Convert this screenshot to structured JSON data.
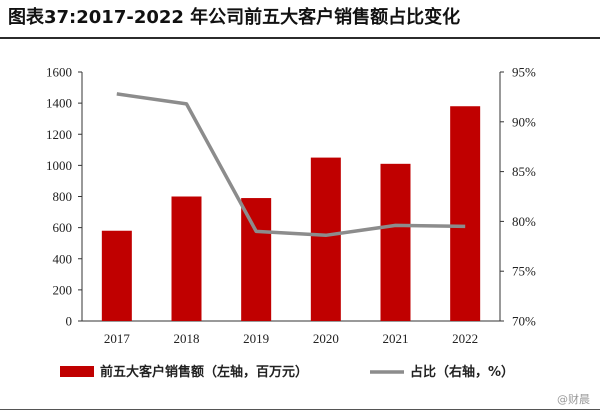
{
  "title": "图表37:2017-2022 年公司前五大客户销售额占比变化",
  "watermark": "@财晨",
  "colors": {
    "bar": "#c00000",
    "line": "#8c8c8c",
    "axis": "#333333"
  },
  "chart_data": {
    "type": "bar",
    "categories": [
      "2017",
      "2018",
      "2019",
      "2020",
      "2021",
      "2022"
    ],
    "series": [
      {
        "name": "前五大客户销售额（左轴，百万元）",
        "type": "bar",
        "axis": "left",
        "values": [
          580,
          800,
          790,
          1050,
          1010,
          1380
        ]
      },
      {
        "name": "占比（右轴，%）",
        "type": "line",
        "axis": "right",
        "values": [
          92.8,
          91.8,
          79.0,
          78.6,
          79.6,
          79.5
        ]
      }
    ],
    "left_axis": {
      "ylim": [
        0,
        1600
      ],
      "ticks": [
        "0",
        "200",
        "400",
        "600",
        "800",
        "1000",
        "1200",
        "1400",
        "1600"
      ]
    },
    "right_axis": {
      "ylim": [
        70,
        95
      ],
      "ticks": [
        "70%",
        "75%",
        "80%",
        "85%",
        "90%",
        "95%"
      ]
    },
    "grid": false,
    "legend": "bottom"
  }
}
